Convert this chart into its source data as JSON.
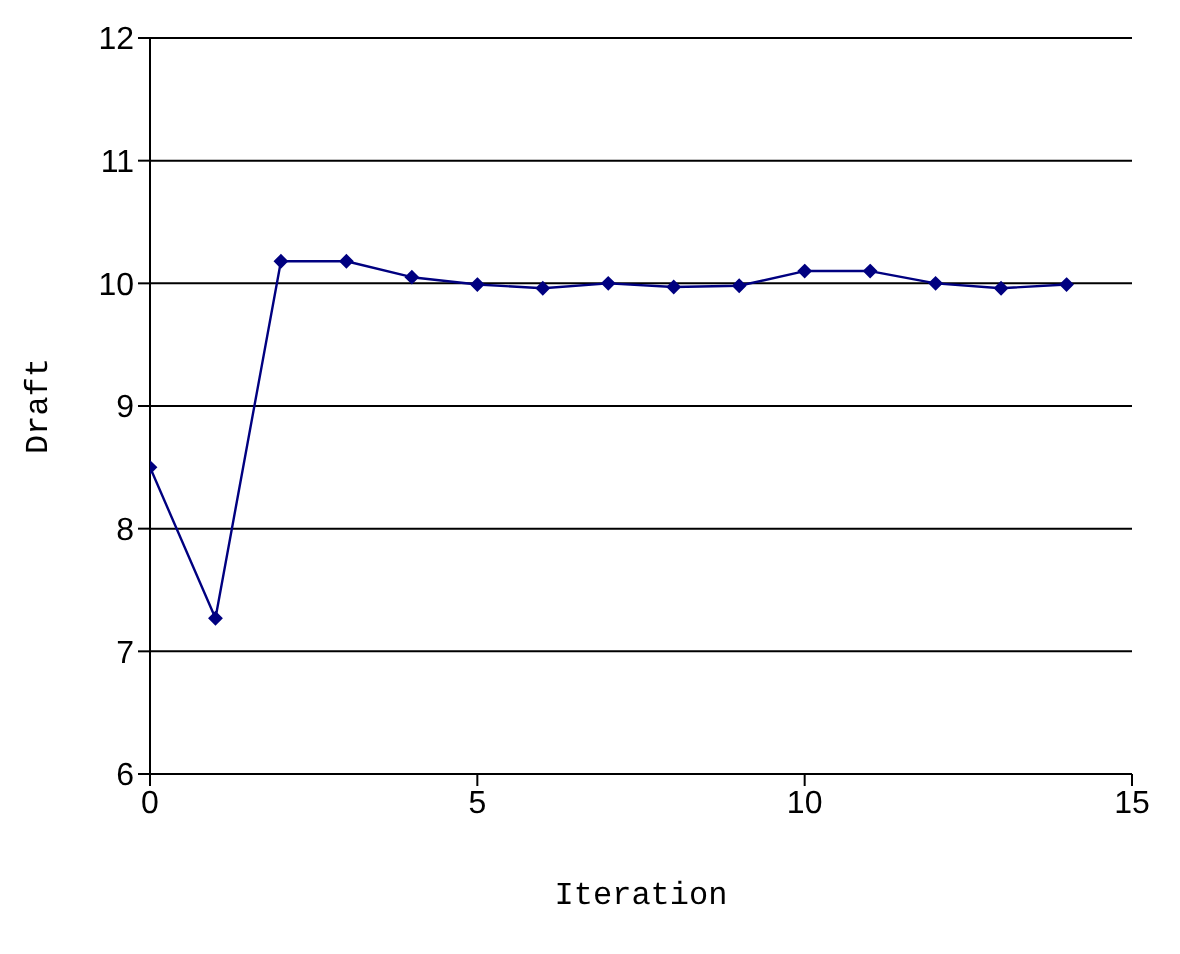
{
  "chart_data": {
    "type": "line",
    "xlabel": "Iteration",
    "ylabel": "Draft",
    "x": [
      0,
      1,
      2,
      3,
      4,
      5,
      6,
      7,
      8,
      9,
      10,
      11,
      12,
      13,
      14
    ],
    "series": [
      {
        "color": "#000080",
        "values": [
          8.5,
          7.27,
          10.18,
          10.18,
          10.05,
          9.99,
          9.96,
          10.0,
          9.97,
          9.98,
          10.1,
          10.1,
          10.0,
          9.96,
          9.99
        ]
      }
    ],
    "xlim": [
      0,
      15
    ],
    "xticks": [
      0,
      5,
      10,
      15
    ],
    "ylim": [
      6,
      12
    ],
    "yticks": [
      6,
      7,
      8,
      9,
      10,
      11,
      12
    ],
    "grid": "y",
    "marker": "diamond",
    "line_style": "solid"
  }
}
